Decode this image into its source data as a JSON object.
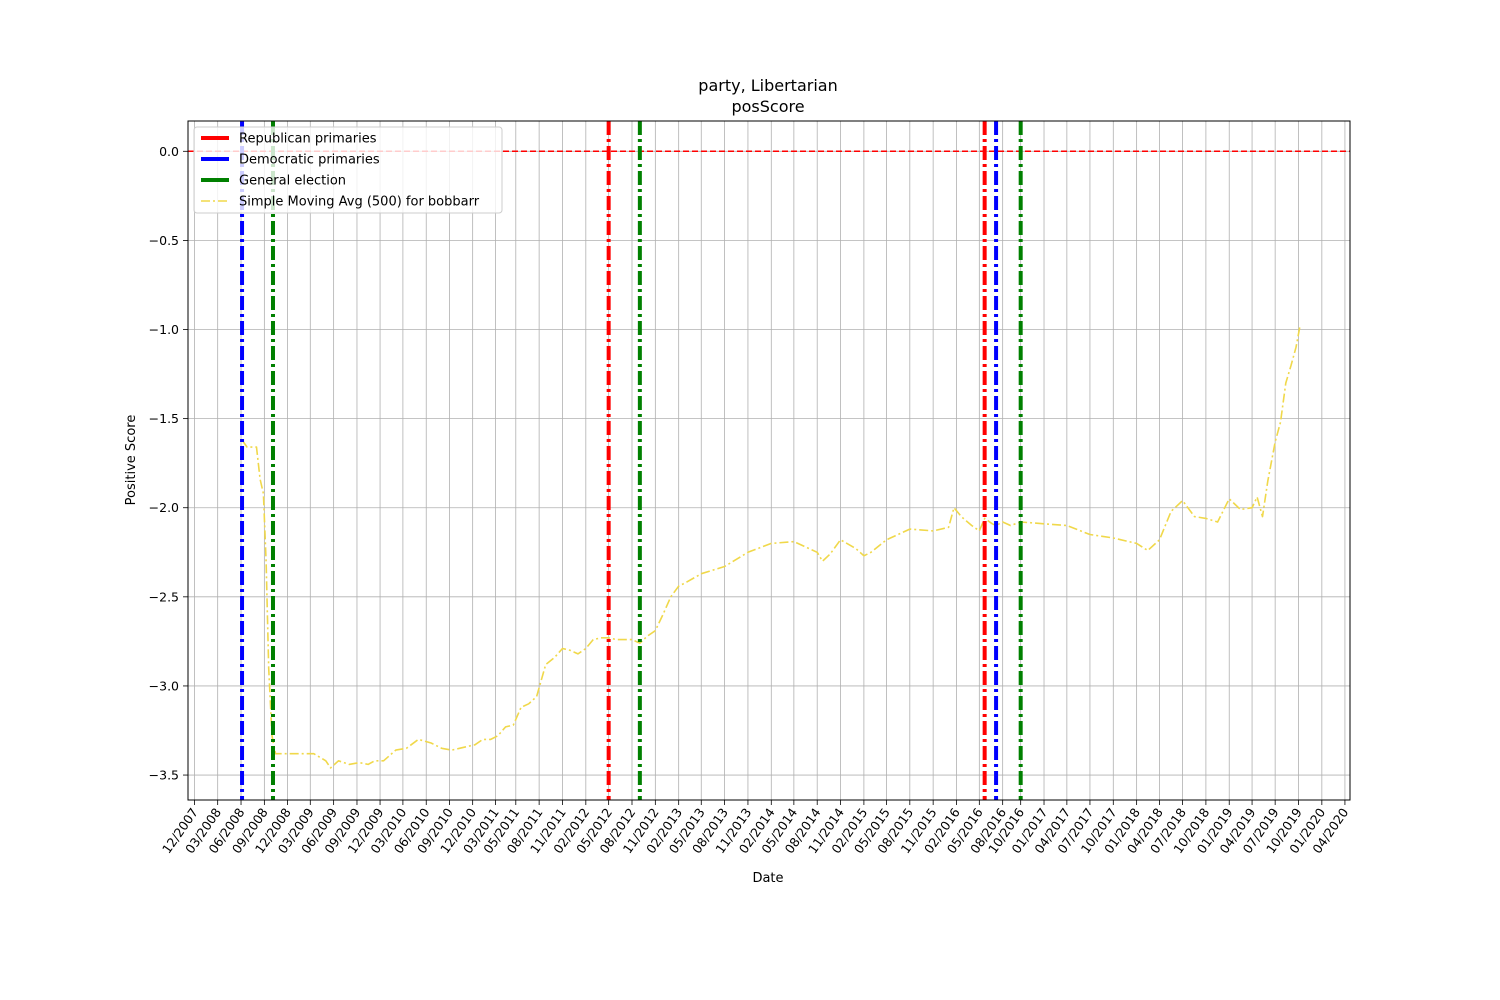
{
  "chart_data": {
    "type": "line",
    "title": "party, Libertarian",
    "subtitle": "posScore",
    "xlabel": "Date",
    "ylabel": "Positive Score",
    "xlim": [
      "2007-11-05",
      "2020-05-20"
    ],
    "ylim": [
      -3.64,
      0.17
    ],
    "grid": true,
    "legend_position": "top-left",
    "x_tick_labels": [
      "12/2007",
      "03/2008",
      "06/2008",
      "09/2008",
      "12/2008",
      "03/2009",
      "06/2009",
      "09/2009",
      "12/2009",
      "03/2010",
      "06/2010",
      "09/2010",
      "12/2010",
      "03/2011",
      "05/2011",
      "08/2011",
      "11/2011",
      "02/2012",
      "05/2012",
      "08/2012",
      "11/2012",
      "02/2013",
      "05/2013",
      "08/2013",
      "11/2013",
      "02/2014",
      "05/2014",
      "08/2014",
      "11/2014",
      "02/2015",
      "05/2015",
      "08/2015",
      "11/2015",
      "02/2016",
      "05/2016",
      "08/2016",
      "10/2016",
      "01/2017",
      "04/2017",
      "07/2017",
      "10/2017",
      "01/2018",
      "04/2018",
      "07/2018",
      "10/2018",
      "01/2019",
      "04/2019",
      "07/2019",
      "10/2019",
      "01/2020",
      "04/2020"
    ],
    "x_tick_dates": [
      "2007-12-01",
      "2008-03-01",
      "2008-06-01",
      "2008-09-01",
      "2008-12-01",
      "2009-03-01",
      "2009-06-01",
      "2009-09-01",
      "2009-12-01",
      "2010-03-01",
      "2010-06-01",
      "2010-09-01",
      "2010-12-01",
      "2011-03-01",
      "2011-05-20",
      "2011-08-20",
      "2011-11-20",
      "2012-02-20",
      "2012-05-20",
      "2012-08-20",
      "2012-11-20",
      "2013-02-20",
      "2013-05-20",
      "2013-08-20",
      "2013-11-20",
      "2014-02-20",
      "2014-05-20",
      "2014-08-20",
      "2014-11-20",
      "2015-02-20",
      "2015-05-20",
      "2015-08-20",
      "2015-11-20",
      "2016-02-20",
      "2016-05-20",
      "2016-08-20",
      "2016-10-30",
      "2017-01-30",
      "2017-04-30",
      "2017-07-30",
      "2017-10-30",
      "2018-01-30",
      "2018-04-30",
      "2018-07-30",
      "2018-10-30",
      "2019-01-30",
      "2019-04-30",
      "2019-07-30",
      "2019-10-30",
      "2020-01-30",
      "2020-04-30"
    ],
    "y_ticks": [
      0.0,
      -0.5,
      -1.0,
      -1.5,
      -2.0,
      -2.5,
      -3.0,
      -3.5
    ],
    "y_tick_labels": [
      "0.0",
      "−0.5",
      "−1.0",
      "−1.5",
      "−2.0",
      "−2.5",
      "−3.0",
      "−3.5"
    ],
    "reference_line": {
      "y": 0.0,
      "color": "#ff0000"
    },
    "vertical_lines": [
      {
        "series": "Republican primaries",
        "x": "2012-05-20",
        "color": "#ff0000"
      },
      {
        "series": "Republican primaries",
        "x": "2016-06-10",
        "color": "#ff0000"
      },
      {
        "series": "Democratic primaries",
        "x": "2008-06-05",
        "color": "#0000ff"
      },
      {
        "series": "Democratic primaries",
        "x": "2016-07-25",
        "color": "#0000ff"
      },
      {
        "series": "General election",
        "x": "2008-10-05",
        "color": "#008000"
      },
      {
        "series": "General election",
        "x": "2012-09-20",
        "color": "#008000"
      },
      {
        "series": "General election",
        "x": "2016-10-30",
        "color": "#008000"
      }
    ],
    "series": [
      {
        "name": "Simple Moving Avg (500) for bobbarr",
        "color": "#f0d84a",
        "x": [
          "2008-06-05",
          "2008-06-25",
          "2008-07-20",
          "2008-08-01",
          "2008-08-15",
          "2008-08-28",
          "2008-09-08",
          "2008-09-18",
          "2008-10-01",
          "2008-10-15",
          "2008-11-15",
          "2009-01-15",
          "2009-03-15",
          "2009-05-01",
          "2009-05-20",
          "2009-06-20",
          "2009-08-01",
          "2009-09-10",
          "2009-10-15",
          "2009-11-10",
          "2009-12-15",
          "2010-02-01",
          "2010-03-15",
          "2010-05-01",
          "2010-06-20",
          "2010-08-01",
          "2010-09-10",
          "2010-10-10",
          "2010-11-10",
          "2010-12-10",
          "2011-01-10",
          "2011-02-10",
          "2011-03-10",
          "2011-04-10",
          "2011-05-10",
          "2011-06-10",
          "2011-07-10",
          "2011-08-10",
          "2011-09-15",
          "2011-10-20",
          "2011-11-20",
          "2011-12-20",
          "2012-01-20",
          "2012-02-20",
          "2012-03-20",
          "2012-04-20",
          "2012-05-20",
          "2012-06-20",
          "2012-07-20",
          "2012-08-20",
          "2012-09-20",
          "2012-10-20",
          "2012-11-20",
          "2012-12-20",
          "2013-01-20",
          "2013-02-20",
          "2013-03-20",
          "2013-05-20",
          "2013-08-20",
          "2013-11-20",
          "2014-02-20",
          "2014-05-20",
          "2014-08-20",
          "2014-09-10",
          "2014-10-10",
          "2014-11-20",
          "2015-01-20",
          "2015-02-20",
          "2015-03-20",
          "2015-05-20",
          "2015-08-20",
          "2015-11-20",
          "2016-01-20",
          "2016-02-10",
          "2016-03-10",
          "2016-04-20",
          "2016-05-20",
          "2016-06-10",
          "2016-07-10",
          "2016-07-25",
          "2016-08-20",
          "2016-09-20",
          "2016-10-30",
          "2017-01-30",
          "2017-04-30",
          "2017-07-30",
          "2017-10-30",
          "2018-01-30",
          "2018-03-15",
          "2018-04-30",
          "2018-06-15",
          "2018-07-30",
          "2018-09-15",
          "2018-10-30",
          "2018-12-15",
          "2019-01-30",
          "2019-03-15",
          "2019-04-30",
          "2019-05-20",
          "2019-06-10",
          "2019-07-01",
          "2019-07-30",
          "2019-08-20",
          "2019-09-10",
          "2019-10-01",
          "2019-10-20",
          "2019-11-05"
        ],
        "values": [
          -1.62,
          -1.66,
          -1.66,
          -1.66,
          -1.84,
          -1.92,
          -2.3,
          -2.9,
          -3.28,
          -3.38,
          -3.38,
          -3.38,
          -3.38,
          -3.42,
          -3.46,
          -3.42,
          -3.44,
          -3.43,
          -3.44,
          -3.42,
          -3.42,
          -3.36,
          -3.35,
          -3.3,
          -3.32,
          -3.35,
          -3.36,
          -3.35,
          -3.34,
          -3.33,
          -3.3,
          -3.3,
          -3.28,
          -3.23,
          -3.22,
          -3.12,
          -3.1,
          -3.06,
          -2.88,
          -2.84,
          -2.79,
          -2.8,
          -2.82,
          -2.79,
          -2.74,
          -2.73,
          -2.73,
          -2.74,
          -2.74,
          -2.74,
          -2.76,
          -2.72,
          -2.69,
          -2.6,
          -2.5,
          -2.44,
          -2.42,
          -2.37,
          -2.33,
          -2.25,
          -2.2,
          -2.19,
          -2.25,
          -2.3,
          -2.26,
          -2.18,
          -2.23,
          -2.27,
          -2.25,
          -2.18,
          -2.12,
          -2.13,
          -2.11,
          -2.0,
          -2.05,
          -2.1,
          -2.13,
          -2.06,
          -2.09,
          -2.1,
          -2.08,
          -2.1,
          -2.08,
          -2.09,
          -2.1,
          -2.15,
          -2.17,
          -2.2,
          -2.24,
          -2.18,
          -2.02,
          -1.96,
          -2.05,
          -2.06,
          -2.08,
          -1.95,
          -2.01,
          -2.0,
          -1.94,
          -2.05,
          -1.85,
          -1.63,
          -1.52,
          -1.3,
          -1.2,
          -1.1,
          -0.98
        ]
      }
    ],
    "legend": [
      {
        "label": "Republican primaries",
        "color": "#ff0000",
        "style": "solid-thick"
      },
      {
        "label": "Democratic primaries",
        "color": "#0000ff",
        "style": "solid-thick"
      },
      {
        "label": "General election",
        "color": "#008000",
        "style": "solid-thick"
      },
      {
        "label": "Simple Moving Avg (500) for bobbarr",
        "color": "#f0d84a",
        "style": "dashdot"
      }
    ]
  }
}
